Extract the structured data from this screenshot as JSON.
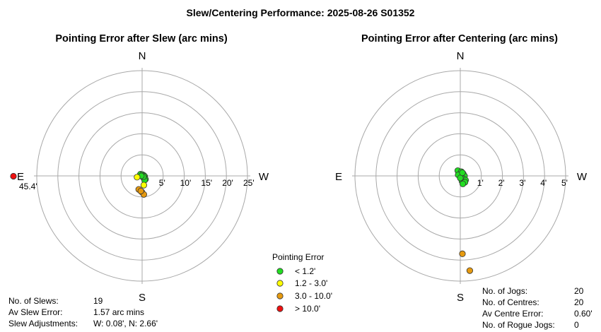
{
  "title": "Slew/Centering Performance: 2025-08-26 S01352",
  "colors": {
    "ring": "#a8a8a8",
    "axis": "#a8a8a8",
    "marker_stroke": "#333333",
    "green": "#22dd22",
    "yellow": "#ffff00",
    "orange": "#e69a10",
    "red": "#ee1010"
  },
  "legend": {
    "title": "Pointing Error",
    "items": [
      {
        "label": "< 1.2'",
        "color": "#22dd22"
      },
      {
        "label": "1.2 - 3.0'",
        "color": "#ffff00"
      },
      {
        "label": "3.0 - 10.0'",
        "color": "#e69a10"
      },
      {
        "label": "> 10.0'",
        "color": "#ee1010"
      }
    ]
  },
  "chart_data": [
    {
      "type": "scatter",
      "polar": true,
      "title": "Pointing Error after Slew (arc mins)",
      "directions": {
        "north": "N",
        "south": "S",
        "east": "E",
        "west": "W"
      },
      "rmax": 25,
      "rings": [
        5,
        10,
        15,
        20,
        25
      ],
      "ring_labels": [
        "5'",
        "10'",
        "15'",
        "20'",
        "25'"
      ],
      "units": "arc mins",
      "points": [
        {
          "w": -0.4,
          "n": 0.4,
          "cat": "green"
        },
        {
          "w": 0.1,
          "n": 0.3,
          "cat": "green"
        },
        {
          "w": 0.4,
          "n": 0.1,
          "cat": "green"
        },
        {
          "w": 0.6,
          "n": -0.1,
          "cat": "green"
        },
        {
          "w": 0.2,
          "n": -0.3,
          "cat": "green"
        },
        {
          "w": 0.5,
          "n": -0.4,
          "cat": "green"
        },
        {
          "w": 0.8,
          "n": -0.8,
          "cat": "green"
        },
        {
          "w": 0.6,
          "n": -1.0,
          "cat": "green"
        },
        {
          "w": 0.3,
          "n": -0.2,
          "cat": "green"
        },
        {
          "w": -0.2,
          "n": 0.0,
          "cat": "green"
        },
        {
          "w": -1.2,
          "n": -0.3,
          "cat": "yellow"
        },
        {
          "w": 0.4,
          "n": -2.2,
          "cat": "yellow"
        },
        {
          "w": -0.8,
          "n": -3.2,
          "cat": "orange"
        },
        {
          "w": -0.1,
          "n": -3.8,
          "cat": "orange"
        },
        {
          "w": 0.4,
          "n": -4.4,
          "cat": "orange"
        },
        {
          "w": -0.3,
          "n": -3.6,
          "cat": "orange"
        }
      ],
      "outlier": {
        "direction": "E",
        "value": 45.4,
        "label": "45.4'",
        "cat": "red"
      },
      "stats": [
        {
          "label": "No. of Slews:",
          "value": "19"
        },
        {
          "label": "Av Slew Error:",
          "value": "1.57 arc mins"
        },
        {
          "label": "Slew Adjustments:",
          "value": "W: 0.08', N: 2.66'"
        }
      ]
    },
    {
      "type": "scatter",
      "polar": true,
      "title": "Pointing Error after Centering (arc mins)",
      "directions": {
        "north": "N",
        "south": "S",
        "east": "E",
        "west": "W"
      },
      "rmax": 5,
      "rings": [
        1,
        2,
        3,
        4,
        5
      ],
      "ring_labels": [
        "1'",
        "2'",
        "3'",
        "4'",
        "5'"
      ],
      "units": "arc mins",
      "points": [
        {
          "w": -0.12,
          "n": 0.25,
          "cat": "green"
        },
        {
          "w": 0.05,
          "n": 0.2,
          "cat": "green"
        },
        {
          "w": 0.14,
          "n": 0.1,
          "cat": "green"
        },
        {
          "w": 0.2,
          "n": 0.0,
          "cat": "green"
        },
        {
          "w": 0.05,
          "n": -0.05,
          "cat": "green"
        },
        {
          "w": 0.15,
          "n": -0.15,
          "cat": "green"
        },
        {
          "w": 0.25,
          "n": -0.2,
          "cat": "green"
        },
        {
          "w": 0.08,
          "n": -0.25,
          "cat": "green"
        },
        {
          "w": 0.18,
          "n": -0.32,
          "cat": "green"
        },
        {
          "w": -0.1,
          "n": 0.05,
          "cat": "green"
        },
        {
          "w": 0.0,
          "n": -0.1,
          "cat": "green"
        },
        {
          "w": 0.1,
          "n": 0.15,
          "cat": "green"
        },
        {
          "w": 0.22,
          "n": -0.3,
          "cat": "green"
        },
        {
          "w": 0.12,
          "n": -0.38,
          "cat": "green"
        },
        {
          "w": 0.1,
          "n": -3.7,
          "cat": "orange"
        },
        {
          "w": 0.45,
          "n": -4.5,
          "cat": "orange"
        }
      ],
      "stats": [
        {
          "label": "No. of Jogs:",
          "value": "20"
        },
        {
          "label": "No. of Centres:",
          "value": "20"
        },
        {
          "label": "Av Centre Error:",
          "value": "0.60'"
        },
        {
          "label": "No. of Rogue Jogs:",
          "value": "0"
        }
      ]
    }
  ]
}
